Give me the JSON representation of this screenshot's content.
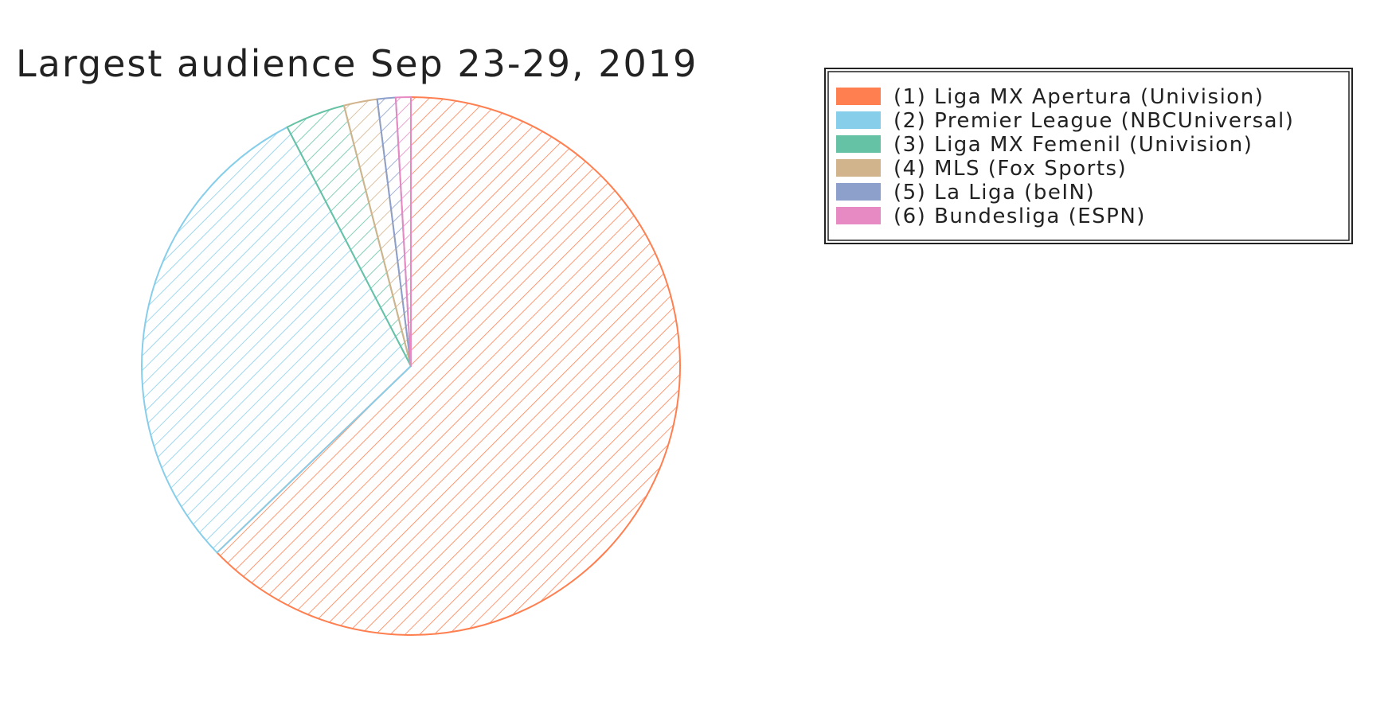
{
  "chart_data": {
    "type": "pie",
    "title": "Largest audience Sep 23-29, 2019",
    "slices": [
      {
        "label": "(1) Liga MX Apertura (Univision)",
        "value": 62.8,
        "color": "#ff7f50"
      },
      {
        "label": "(2) Premier League (NBCUniversal)",
        "value": 29.6,
        "color": "#87ceeb"
      },
      {
        "label": "(3) Liga MX Femenil (Univision)",
        "value": 3.6,
        "color": "#66c2a5"
      },
      {
        "label": "(4) MLS (Fox Sports)",
        "value": 2.0,
        "color": "#d2b48c"
      },
      {
        "label": "(5) La Liga (beIN)",
        "value": 1.1,
        "color": "#8da0cb"
      },
      {
        "label": "(6) Bundesliga (ESPN)",
        "value": 0.9,
        "color": "#e78ac3"
      }
    ],
    "start_angle": "12 o'clock",
    "direction": "clockwise",
    "fill_pattern": "hatched",
    "legend_position": "top-right"
  }
}
